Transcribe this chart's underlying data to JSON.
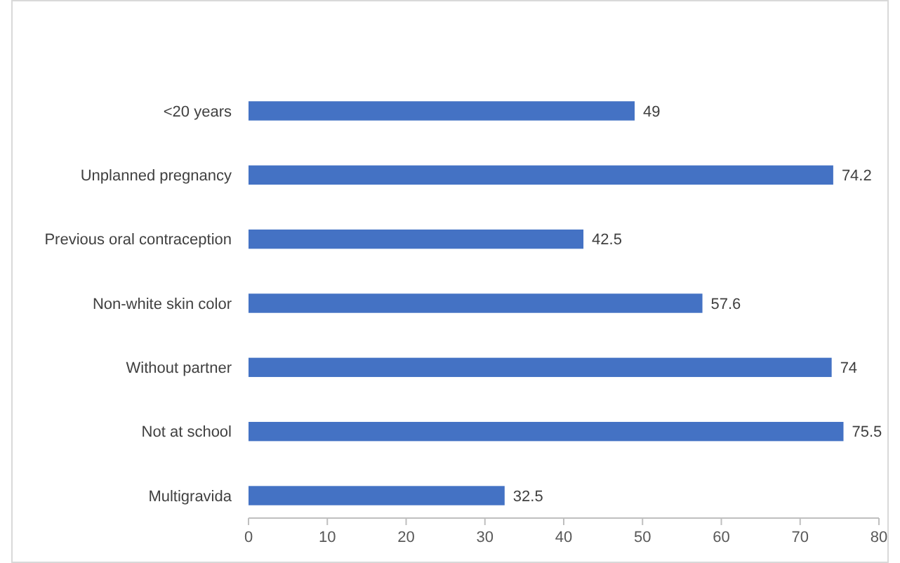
{
  "chart_data": {
    "type": "bar",
    "orientation": "horizontal",
    "categories": [
      "<20 years",
      "Unplanned pregnancy",
      "Previous oral contraception",
      "Non-white skin color",
      "Without partner",
      "Not at school",
      "Multigravida"
    ],
    "values": [
      49,
      74.2,
      42.5,
      57.6,
      74,
      75.5,
      32.5
    ],
    "color": "#4472c4",
    "xlim": [
      0,
      80
    ],
    "xticks": [
      0,
      10,
      20,
      30,
      40,
      50,
      60,
      70,
      80
    ],
    "grid": false,
    "data_labels": true
  }
}
